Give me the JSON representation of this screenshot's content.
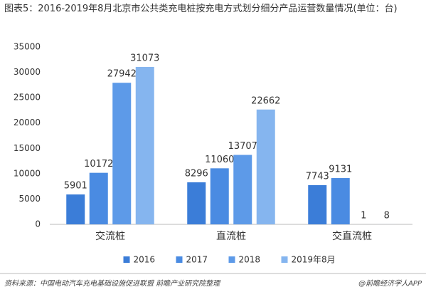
{
  "chart_data": {
    "type": "bar",
    "title": "图表5：2016-2019年8月北京市公共类充电桩按充电方式划分细分产品运营数量情况(单位：台)",
    "categories": [
      "交流桩",
      "直流桩",
      "交直流桩"
    ],
    "series": [
      {
        "name": "2016",
        "color": "#3b7dd8",
        "values": [
          5901,
          8296,
          7743
        ]
      },
      {
        "name": "2017",
        "color": "#4a8be2",
        "values": [
          10172,
          11060,
          9131
        ]
      },
      {
        "name": "2018",
        "color": "#5d9ae8",
        "values": [
          27942,
          13707,
          1
        ]
      },
      {
        "name": "2019年8月",
        "color": "#85b5ef",
        "values": [
          31073,
          22662,
          8
        ]
      }
    ],
    "ylim": [
      0,
      35000
    ],
    "yticks": [
      0,
      5000,
      10000,
      15000,
      20000,
      25000,
      30000,
      35000
    ],
    "grid": false,
    "legend": "bottom"
  },
  "footer": {
    "source": "资料来源：中国电动汽车充电基础设施促进联盟 前瞻产业研究院整理",
    "brand": "@前瞻经济学人APP"
  }
}
